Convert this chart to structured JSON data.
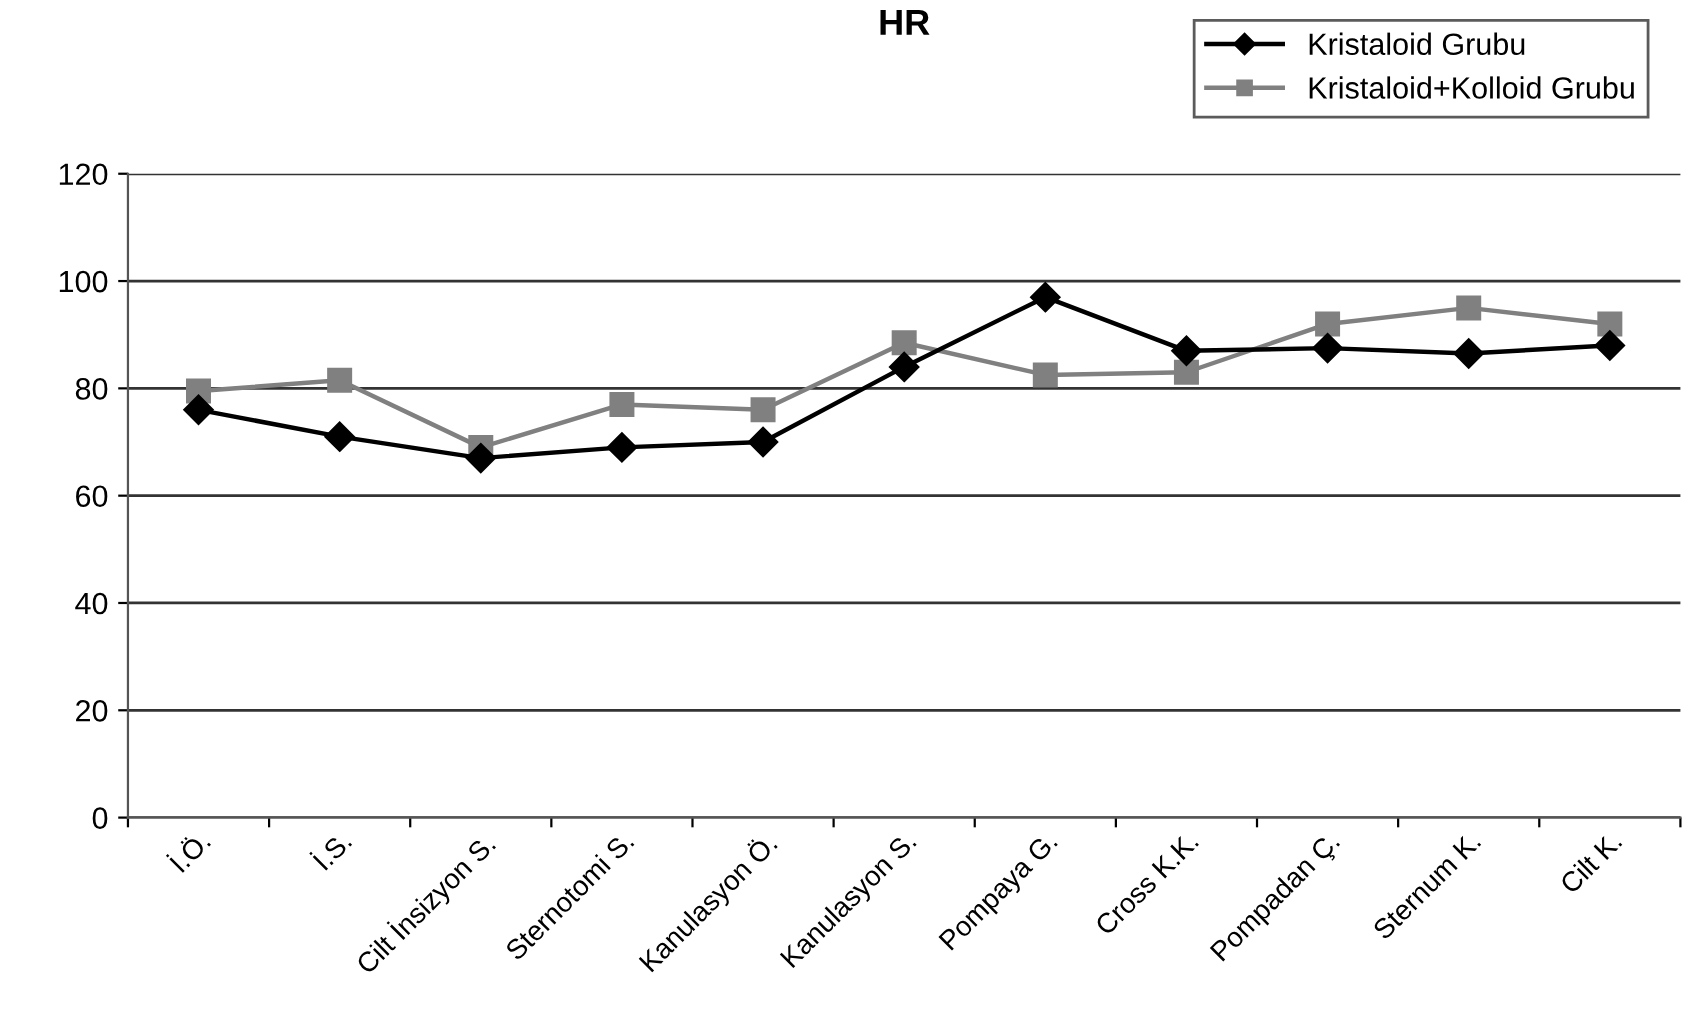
{
  "chart_data": {
    "type": "line",
    "title": "HR",
    "categories": [
      "İ.Ö.",
      "İ.S.",
      "Cilt İnsizyon S.",
      "Sternotomi S.",
      "Kanulasyon Ö.",
      "Kanulasyon S.",
      "Pompaya G.",
      "Cross K.K.",
      "Pompadan Ç.",
      "Sternum K.",
      "Cilt K."
    ],
    "series": [
      {
        "name": "Kristaloid Grubu",
        "color": "#000000",
        "marker": "diamond",
        "values": [
          76,
          71,
          67,
          69,
          70,
          84,
          97,
          87,
          87.5,
          86.5,
          88
        ]
      },
      {
        "name": "Kristaloid+Kolloid Grubu",
        "color": "#808080",
        "marker": "square",
        "values": [
          79.5,
          81.5,
          69,
          77,
          76,
          88.5,
          82.5,
          83,
          92,
          95,
          92
        ]
      }
    ],
    "ylim": [
      0,
      120
    ],
    "yticks": [
      0,
      20,
      40,
      60,
      80,
      100,
      120
    ],
    "grid": "y",
    "legend": "top right",
    "line_style": "solid"
  }
}
